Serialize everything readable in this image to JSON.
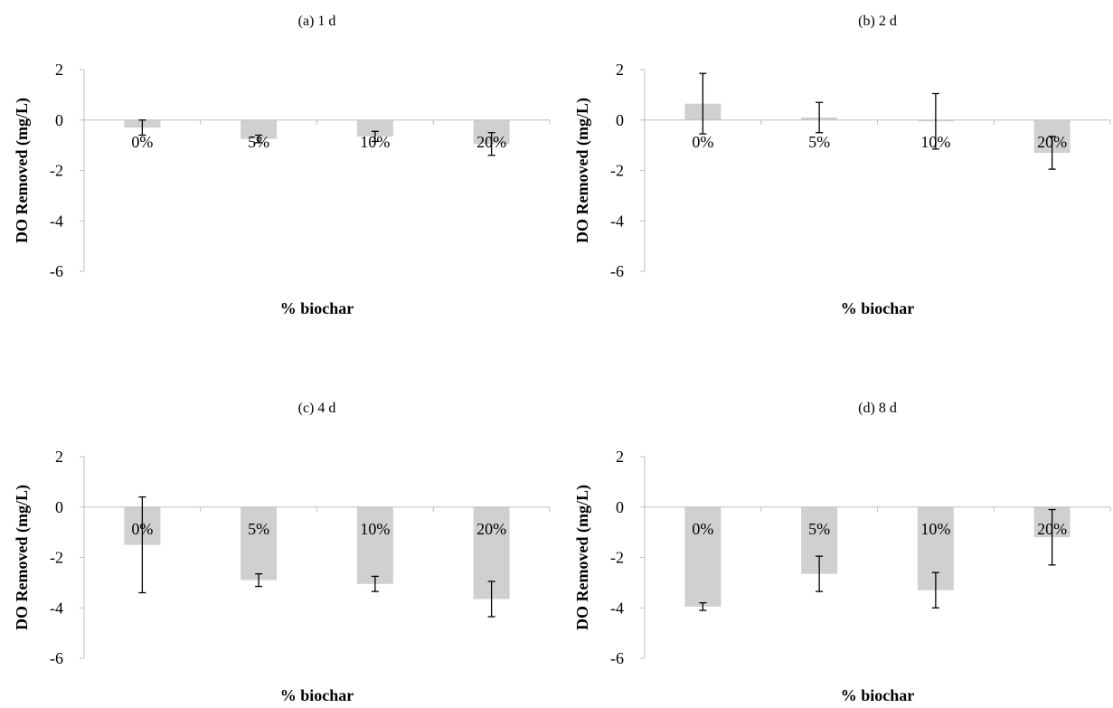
{
  "colors": {
    "bar": "#d0d0d0",
    "axis": "#bfbfbf",
    "error_bar": "#000000"
  },
  "chart_data": [
    {
      "type": "bar",
      "title": "(a) 1 d",
      "xlabel": "% biochar",
      "ylabel": "DO Removed (mg/L)",
      "categories": [
        "0%",
        "5%",
        "10%",
        "20%"
      ],
      "values": [
        -0.3,
        -0.75,
        -0.65,
        -0.95
      ],
      "errors": [
        0.3,
        0.15,
        0.2,
        0.45
      ],
      "ylim": [
        -6,
        2
      ],
      "yticks": [
        "2",
        "0",
        "-2",
        "-4",
        "-6"
      ],
      "grid": false
    },
    {
      "type": "bar",
      "title": "(b) 2 d",
      "xlabel": "% biochar",
      "ylabel": "DO Removed (mg/L)",
      "categories": [
        "0%",
        "5%",
        "10%",
        "20%"
      ],
      "values": [
        0.65,
        0.1,
        -0.05,
        -1.3
      ],
      "errors": [
        1.2,
        0.6,
        1.1,
        0.65
      ],
      "ylim": [
        -6,
        2
      ],
      "yticks": [
        "2",
        "0",
        "-2",
        "-4",
        "-6"
      ],
      "grid": false
    },
    {
      "type": "bar",
      "title": "(c) 4 d",
      "xlabel": "% biochar",
      "ylabel": "DO Removed (mg/L)",
      "categories": [
        "0%",
        "5%",
        "10%",
        "20%"
      ],
      "values": [
        -1.5,
        -2.9,
        -3.05,
        -3.65
      ],
      "errors": [
        1.9,
        0.25,
        0.3,
        0.7
      ],
      "ylim": [
        -6,
        2
      ],
      "yticks": [
        "2",
        "0",
        "-2",
        "-4",
        "-6"
      ],
      "grid": false
    },
    {
      "type": "bar",
      "title": "(d) 8 d",
      "xlabel": "% biochar",
      "ylabel": "DO Removed (mg/L)",
      "categories": [
        "0%",
        "5%",
        "10%",
        "20%"
      ],
      "values": [
        -3.95,
        -2.65,
        -3.3,
        -1.2
      ],
      "errors": [
        0.15,
        0.7,
        0.7,
        1.1
      ],
      "ylim": [
        -6,
        2
      ],
      "yticks": [
        "2",
        "0",
        "-2",
        "-4",
        "-6"
      ],
      "grid": false
    }
  ]
}
